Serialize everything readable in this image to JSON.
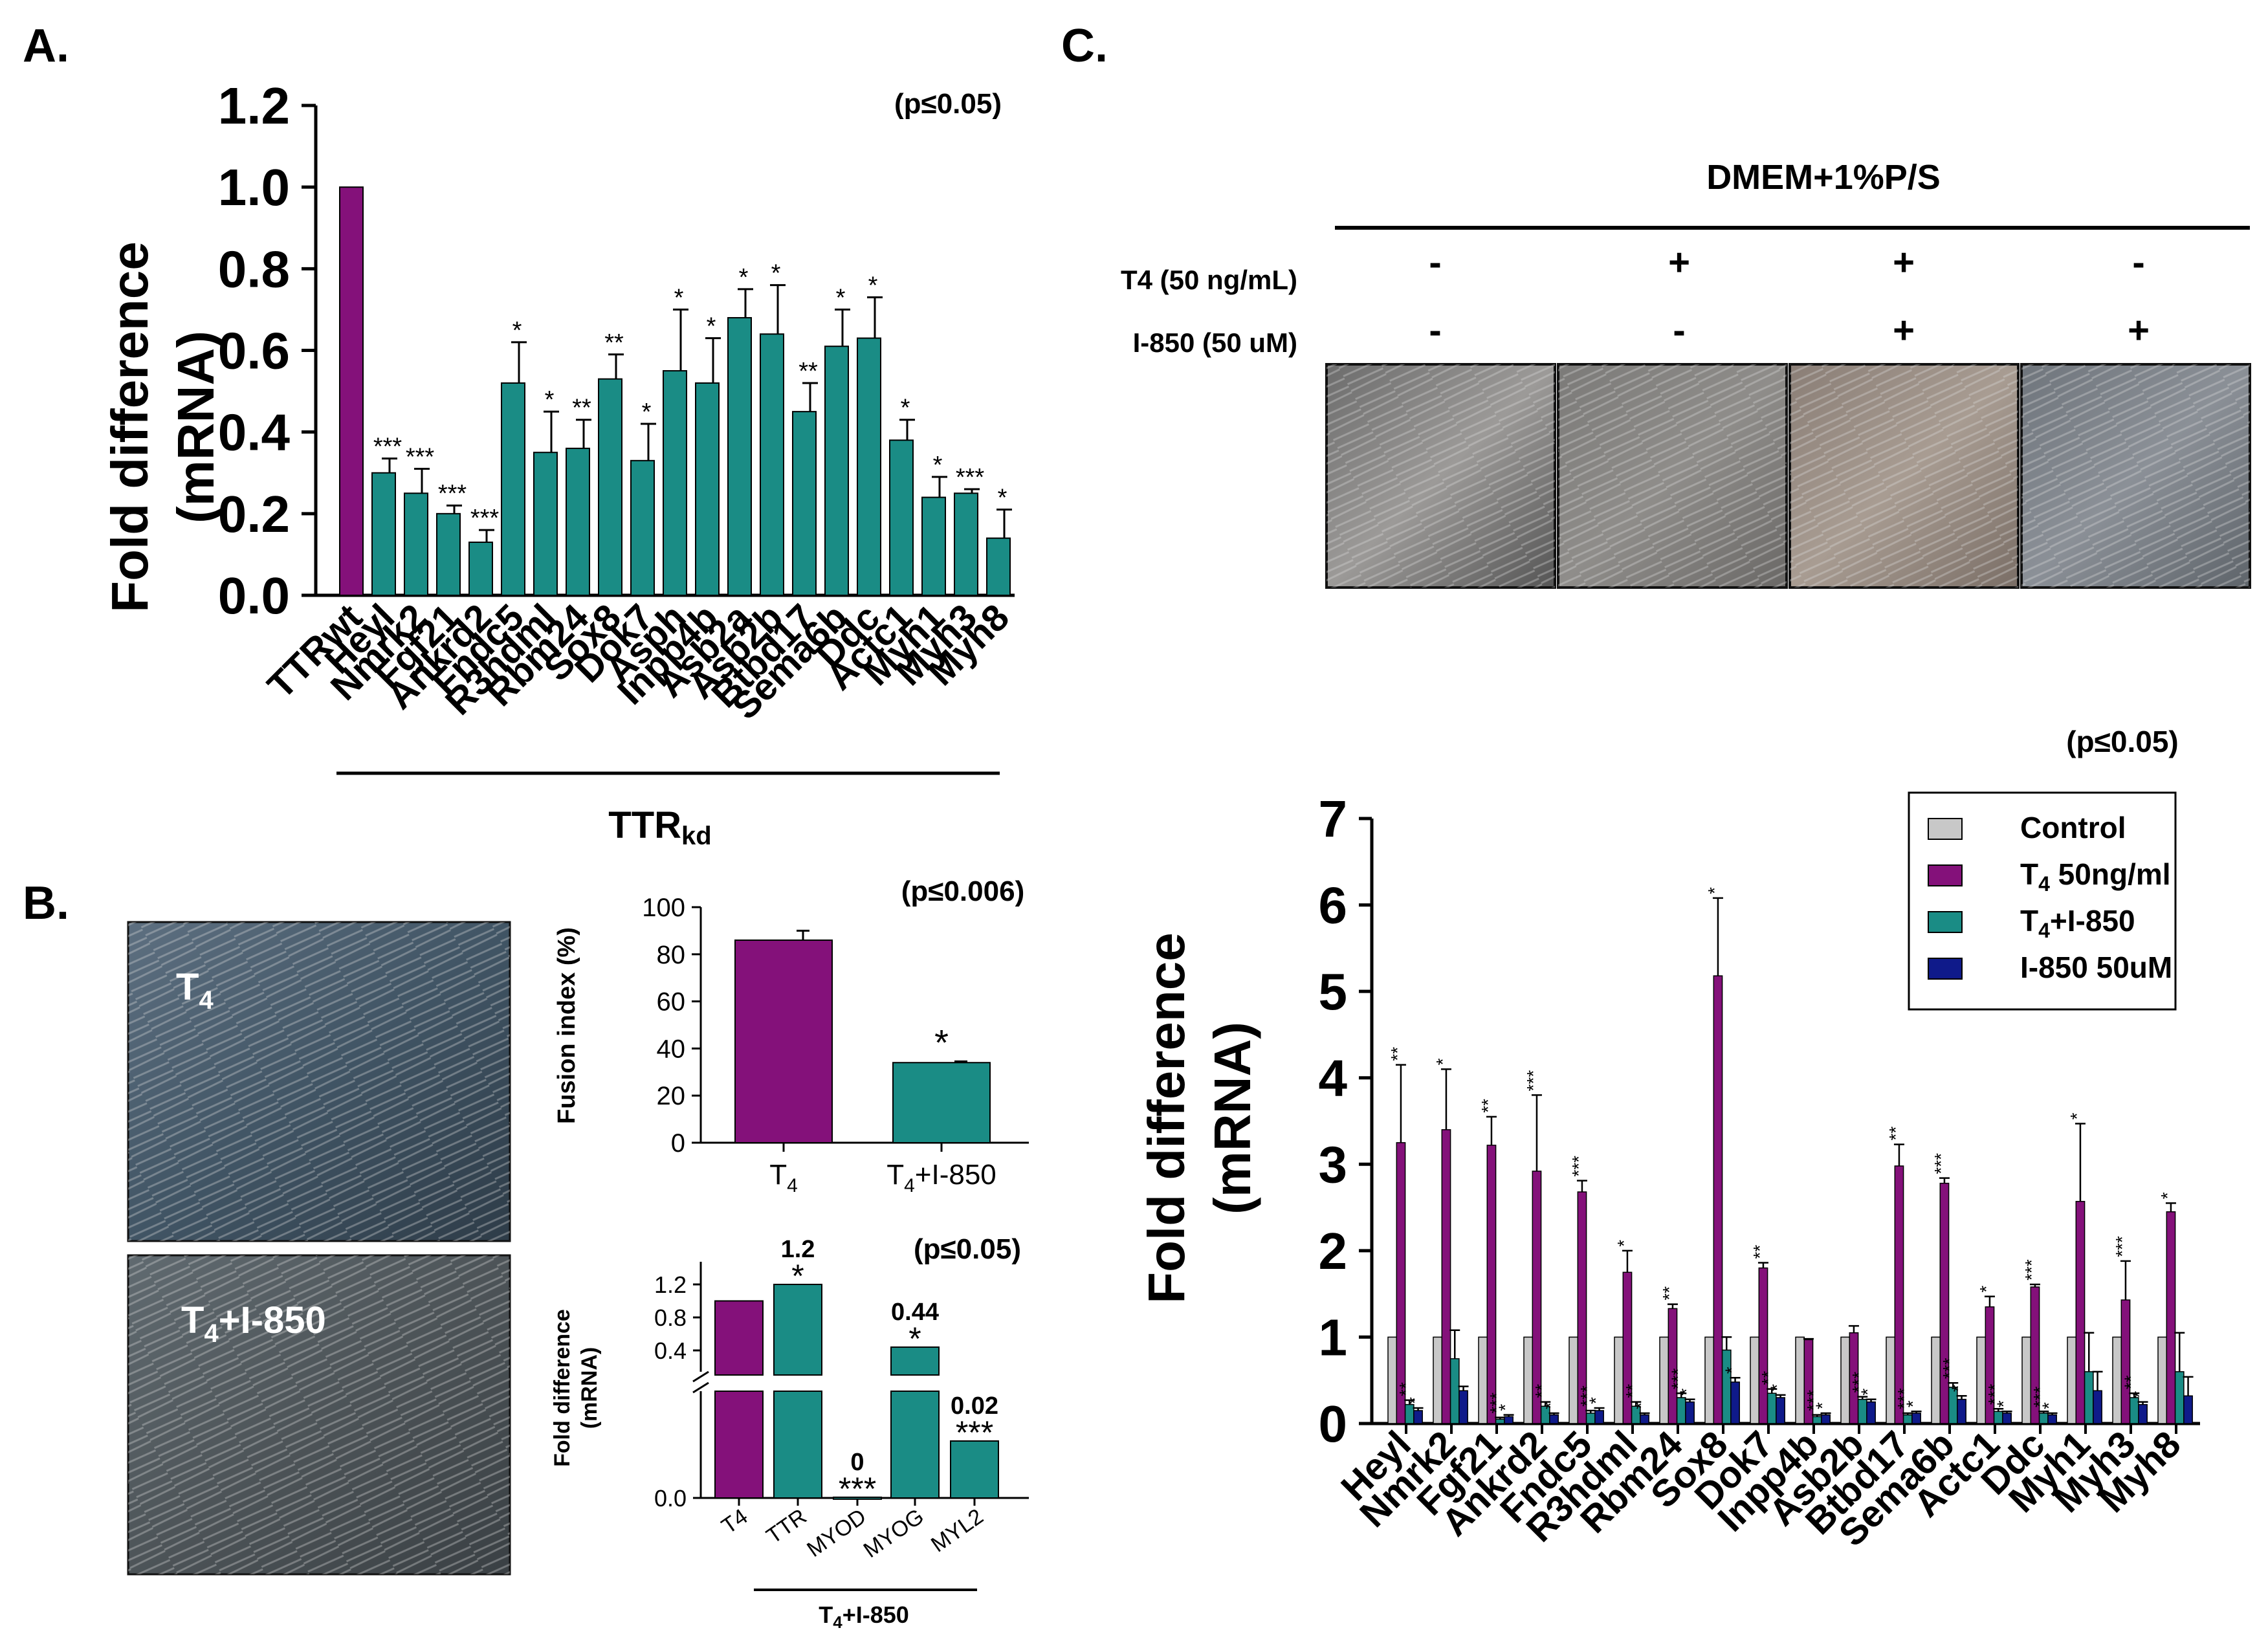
{
  "colors": {
    "purple": "#84117a",
    "teal": "#1a8c85",
    "gray": "#c8c8c8",
    "navy": "#0f1a8a",
    "black": "#000000"
  },
  "panel_a": {
    "label": "A.",
    "group_label_main": "TTR",
    "group_label_sub": "kd"
  },
  "panel_b": {
    "label": "B.",
    "photo_labels": {
      "t4_main": "T",
      "t4_sub": "4",
      "t4i_main": "T",
      "t4i_sub": "4",
      "t4i_rest": "+I-850"
    },
    "group_label_main": "T",
    "group_label_sub": "4",
    "group_label_rest": "+I-850"
  },
  "panel_c": {
    "label": "C.",
    "header": "DMEM+1%P/S",
    "row1_label": "T4 (50 ng/mL)",
    "row2_label": "I-850 (50 uM)",
    "row1_signs": [
      "-",
      "+",
      "+",
      "-"
    ],
    "row2_signs": [
      "-",
      "-",
      "+",
      "+"
    ],
    "legend": [
      {
        "main": "Control",
        "sub": "",
        "rest": ""
      },
      {
        "main": "T",
        "sub": "4",
        "rest": " 50ng/ml"
      },
      {
        "main": "T",
        "sub": "4",
        "rest": "+I-850"
      },
      {
        "main": "I-850 50uM",
        "sub": "",
        "rest": ""
      }
    ]
  },
  "chart_data": [
    {
      "id": "A",
      "type": "bar",
      "title": "",
      "annotation": "(p≤0.05)",
      "xlabel": "TTRkd",
      "ylabel": "Fold difference (mRNA)",
      "ylim": [
        0,
        1.2
      ],
      "yticks": [
        "0.0",
        "0.2",
        "0.4",
        "0.6",
        "0.8",
        "1.0",
        "1.2"
      ],
      "categories": [
        "TTRwt",
        "Heyl",
        "Nmrk2",
        "Fgf21",
        "Ankrd2",
        "Fndc5",
        "R3hdml",
        "Rbm24",
        "Sox8",
        "Dok7",
        "Asph",
        "Inpp4b",
        "Asb2a",
        "Asb2b",
        "Btbd17",
        "Sema6b",
        "Ddc",
        "Actc1",
        "Myh1",
        "Myh3",
        "Myh8"
      ],
      "values": [
        1.0,
        0.3,
        0.25,
        0.2,
        0.13,
        0.52,
        0.35,
        0.36,
        0.53,
        0.33,
        0.55,
        0.52,
        0.68,
        0.64,
        0.45,
        0.61,
        0.63,
        0.38,
        0.24,
        0.25,
        0.14
      ],
      "errors": [
        0,
        0.035,
        0.06,
        0.02,
        0.03,
        0.1,
        0.1,
        0.07,
        0.06,
        0.09,
        0.15,
        0.11,
        0.07,
        0.12,
        0.07,
        0.09,
        0.1,
        0.05,
        0.05,
        0.01,
        0.07
      ],
      "significance": [
        "",
        "***",
        "***",
        "***",
        "***",
        "*",
        "*",
        "**",
        "**",
        "*",
        "*",
        "*",
        "*",
        "*",
        "**",
        "*",
        "*",
        "*",
        "*",
        "***",
        "*"
      ]
    },
    {
      "id": "B1",
      "type": "bar",
      "annotation": "(p≤0.006)",
      "ylabel": "Fusion index (%)",
      "ylim": [
        0,
        100
      ],
      "yticks": [
        "0",
        "20",
        "40",
        "60",
        "80",
        "100"
      ],
      "categories": [
        {
          "main": "T",
          "sub": "4",
          "rest": ""
        },
        {
          "main": "T",
          "sub": "4",
          "rest": "+I-850"
        }
      ],
      "values": [
        86,
        34
      ],
      "errors": [
        4,
        0.5
      ],
      "significance": [
        "",
        "*"
      ]
    },
    {
      "id": "B2",
      "type": "bar",
      "annotation": "(p≤0.05)",
      "ylabel": "Fold difference (mRNA)",
      "yticks_upper": [
        "0.4",
        "0.8",
        "1.2"
      ],
      "ytick_lower": "0.0",
      "categories": [
        "T4",
        "TTR",
        "MYOD",
        "MYOG",
        "MYL2"
      ],
      "values": [
        1.0,
        1.2,
        0,
        0.44,
        0.02
      ],
      "value_labels": [
        "",
        "1.2",
        "0",
        "0.44",
        "0.02"
      ],
      "significance": [
        "",
        "*",
        "***",
        "*",
        "***"
      ],
      "xlabel": "T4+I-850"
    },
    {
      "id": "C",
      "type": "bar",
      "annotation": "(p≤0.05)",
      "ylabel": "Fold difference (mRNA)",
      "ylim": [
        0,
        7
      ],
      "yticks": [
        "0",
        "1",
        "2",
        "3",
        "4",
        "5",
        "6",
        "7"
      ],
      "categories": [
        "Heyl",
        "Nmrk2",
        "Fgf21",
        "Ankrd2",
        "Fndc5",
        "R3hdml",
        "Rbm24",
        "Sox8",
        "Dok7",
        "Inpp4b",
        "Asb2b",
        "Btbd17",
        "Sema6b",
        "Actc1",
        "Ddc",
        "Myh1",
        "Myh3",
        "Myh8"
      ],
      "series": [
        {
          "name": "Control",
          "values": [
            1,
            1,
            1,
            1,
            1,
            1,
            1,
            1,
            1,
            1,
            1,
            1,
            1,
            1,
            1,
            1,
            1,
            1
          ],
          "errors": [
            0,
            0,
            0,
            0,
            0,
            0,
            0,
            0,
            0,
            0,
            0,
            0,
            0,
            0,
            0,
            0,
            0,
            0
          ]
        },
        {
          "name": "T4 50ng/ml",
          "values": [
            3.25,
            3.4,
            3.22,
            2.92,
            2.68,
            1.75,
            1.33,
            5.18,
            1.8,
            0.97,
            1.05,
            2.98,
            2.78,
            1.35,
            1.58,
            2.57,
            1.43,
            2.45
          ],
          "errors": [
            0.9,
            0.7,
            0.33,
            0.88,
            0.13,
            0.25,
            0.05,
            0.9,
            0.06,
            0.01,
            0.08,
            0.25,
            0.06,
            0.12,
            0.03,
            0.9,
            0.45,
            0.1
          ],
          "significance": [
            "**",
            "*",
            "**",
            "***",
            "***",
            "*",
            "**",
            "*",
            "**",
            "",
            "",
            "**",
            "***",
            "*",
            "***",
            "*",
            "***",
            "*"
          ]
        },
        {
          "name": "T4+I-850",
          "values": [
            0.22,
            0.75,
            0.05,
            0.2,
            0.12,
            0.2,
            0.3,
            0.85,
            0.35,
            0.08,
            0.28,
            0.1,
            0.42,
            0.14,
            0.12,
            0.6,
            0.3,
            0.6
          ],
          "errors": [
            0.05,
            0.33,
            0.02,
            0.05,
            0.03,
            0.05,
            0.05,
            0.15,
            0.05,
            0.02,
            0.03,
            0.02,
            0.05,
            0.03,
            0.02,
            0.45,
            0.05,
            0.45
          ],
          "significance": [
            "**",
            "",
            "***",
            "**",
            "***",
            "**",
            "***",
            "",
            "**",
            "***",
            "***",
            "***",
            "***",
            "***",
            "***",
            "",
            "**",
            ""
          ]
        },
        {
          "name": "I-850 50uM",
          "values": [
            0.15,
            0.38,
            0.08,
            0.1,
            0.15,
            0.1,
            0.25,
            0.48,
            0.3,
            0.1,
            0.25,
            0.12,
            0.28,
            0.12,
            0.1,
            0.38,
            0.22,
            0.32
          ],
          "errors": [
            0.03,
            0.05,
            0.02,
            0.02,
            0.03,
            0.02,
            0.03,
            0.05,
            0.03,
            0.02,
            0.03,
            0.02,
            0.04,
            0.02,
            0.02,
            0.22,
            0.03,
            0.22
          ],
          "significance": [
            "*",
            "",
            "*",
            "*",
            "*",
            "*",
            "*",
            "*",
            "*",
            "*",
            "*",
            "*",
            "*",
            "*",
            "*",
            "",
            "*",
            ""
          ]
        }
      ]
    }
  ]
}
